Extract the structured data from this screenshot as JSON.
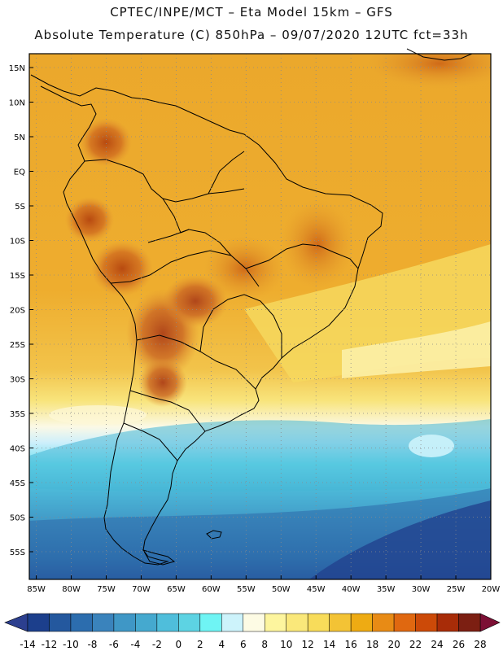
{
  "header": {
    "line1": "CPTEC/INPE/MCT –  Eta Model 15km – GFS",
    "line2": "Absolute Temperature (C) 850hPa – 09/07/2020 12UTC fct=33h"
  },
  "map": {
    "lon_range": [
      -86,
      -20
    ],
    "lat_range": [
      -59,
      17
    ],
    "lat_labels": [
      "15N",
      "10N",
      "5N",
      "EQ",
      "5S",
      "10S",
      "15S",
      "20S",
      "25S",
      "30S",
      "35S",
      "40S",
      "45S",
      "50S",
      "55S"
    ],
    "lat_values": [
      15,
      10,
      5,
      0,
      -5,
      -10,
      -15,
      -20,
      -25,
      -30,
      -35,
      -40,
      -45,
      -50,
      -55
    ],
    "lon_labels": [
      "85W",
      "80W",
      "75W",
      "70W",
      "65W",
      "60W",
      "55W",
      "50W",
      "45W",
      "40W",
      "35W",
      "30W",
      "25W",
      "20W"
    ],
    "lon_values": [
      -85,
      -80,
      -75,
      -70,
      -65,
      -60,
      -55,
      -50,
      -45,
      -40,
      -35,
      -30,
      -25,
      -20
    ]
  },
  "colorbar": {
    "ticks": [
      "-14",
      "-12",
      "-10",
      "-8",
      "-6",
      "-4",
      "-2",
      "0",
      "2",
      "4",
      "6",
      "8",
      "10",
      "12",
      "14",
      "16",
      "18",
      "20",
      "22",
      "24",
      "26",
      "28"
    ],
    "colors": [
      "#1c3f8c",
      "#24589e",
      "#2c6dae",
      "#3a83bc",
      "#3f97c6",
      "#45a9cf",
      "#4fbedb",
      "#5dd3e3",
      "#6ff4f4",
      "#cdf3fb",
      "#fdfbe4",
      "#fdf59e",
      "#fae87a",
      "#f8dc5a",
      "#f3c335",
      "#eeab13",
      "#e88b15",
      "#e06810",
      "#cc4a08",
      "#a82c08",
      "#7c1f12"
    ],
    "low_color": "#2c3f8f",
    "high_color": "#7c0f34"
  }
}
